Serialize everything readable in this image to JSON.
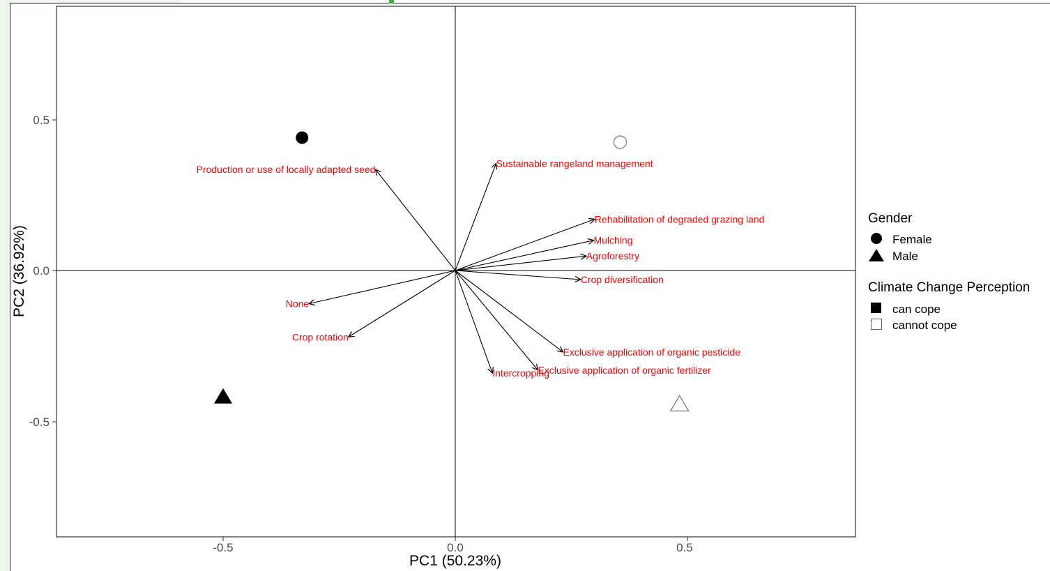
{
  "chart_data": {
    "type": "scatter",
    "title": "",
    "xlabel": "PC1 (50.23%)",
    "ylabel": "PC2 (36.92%)",
    "xlim": [
      -0.86,
      0.86
    ],
    "ylim": [
      -0.88,
      0.88
    ],
    "x_ticks": [
      "-0.5",
      "0.0",
      "0.5"
    ],
    "y_ticks": [
      "0.5",
      "0.0",
      "-0.5"
    ],
    "grid": false,
    "legend_position": "right",
    "points": [
      {
        "x": -0.33,
        "y": 0.44,
        "gender": "Female",
        "perception": "can cope"
      },
      {
        "x": 0.355,
        "y": 0.425,
        "gender": "Female",
        "perception": "cannot cope"
      },
      {
        "x": -0.5,
        "y": -0.415,
        "gender": "Male",
        "perception": "can cope"
      },
      {
        "x": 0.483,
        "y": -0.44,
        "gender": "Male",
        "perception": "cannot cope"
      }
    ],
    "loadings": [
      {
        "label": "Production or use of locally adapted seed",
        "x": -0.172,
        "y": 0.335,
        "anchor": "end"
      },
      {
        "label": "Sustainable rangeland management",
        "x": 0.088,
        "y": 0.355,
        "anchor": "start"
      },
      {
        "label": "Rehabilitation of degraded grazing land",
        "x": 0.3,
        "y": 0.17,
        "anchor": "start"
      },
      {
        "label": "Mulching",
        "x": 0.298,
        "y": 0.1,
        "anchor": "start"
      },
      {
        "label": "Agroforestry",
        "x": 0.282,
        "y": 0.048,
        "anchor": "start"
      },
      {
        "label": "Crop diversification",
        "x": 0.27,
        "y": -0.03,
        "anchor": "start"
      },
      {
        "label": "None",
        "x": -0.315,
        "y": -0.11,
        "anchor": "end"
      },
      {
        "label": "Crop rotation",
        "x": -0.23,
        "y": -0.22,
        "anchor": "end"
      },
      {
        "label": "Exclusive application of organic pesticide",
        "x": 0.232,
        "y": -0.27,
        "anchor": "start"
      },
      {
        "label": "Exclusive application of organic fertilizer",
        "x": 0.178,
        "y": -0.33,
        "anchor": "start"
      },
      {
        "label": "Intercropping",
        "x": 0.08,
        "y": -0.34,
        "anchor": "start"
      }
    ],
    "legend": {
      "gender_title": "Gender",
      "gender_items": [
        "Female",
        "Male"
      ],
      "perception_title": "Climate Change Perception",
      "perception_items": [
        "can cope",
        "cannot cope"
      ]
    }
  }
}
